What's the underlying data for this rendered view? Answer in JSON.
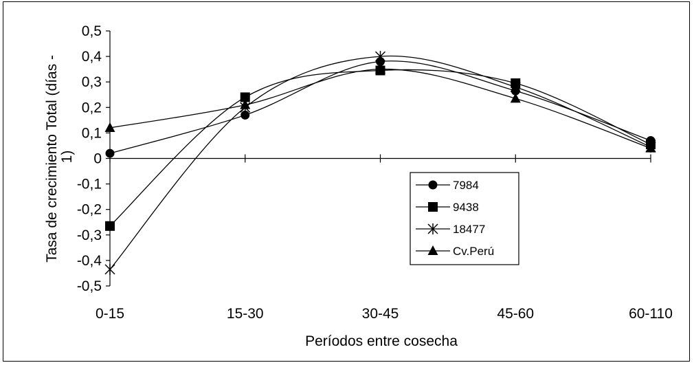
{
  "chart_data": {
    "type": "line",
    "xlabel": "Períodos entre cosecha",
    "ylabel": "Tasa de crecimiento Total (días -1)",
    "categories": [
      "0-15",
      "15-30",
      "30-45",
      "45-60",
      "60-110"
    ],
    "ylim": [
      -0.5,
      0.5
    ],
    "ytick_labels": [
      "0,5",
      "0,4",
      "0,3",
      "0,2",
      "0,1",
      "0",
      "-0,1",
      "-0,2",
      "-0,3",
      "-0,4",
      "-0,5"
    ],
    "ytick_values": [
      0.5,
      0.4,
      0.3,
      0.2,
      0.1,
      0,
      -0.1,
      -0.2,
      -0.3,
      -0.4,
      -0.5
    ],
    "grid": false,
    "legend_position": "lower-right inside plot",
    "series": [
      {
        "name": "7984",
        "marker": "circle",
        "values": [
          0.02,
          0.17,
          0.38,
          0.265,
          0.07
        ]
      },
      {
        "name": "9438",
        "marker": "square",
        "values": [
          -0.265,
          0.24,
          0.345,
          0.295,
          0.055
        ]
      },
      {
        "name": "18477",
        "marker": "star",
        "values": [
          -0.435,
          0.2,
          0.4,
          0.28,
          0.045
        ]
      },
      {
        "name": "Cv.Perú",
        "marker": "triangle",
        "values": [
          0.12,
          0.21,
          0.35,
          0.235,
          0.04
        ]
      }
    ]
  }
}
